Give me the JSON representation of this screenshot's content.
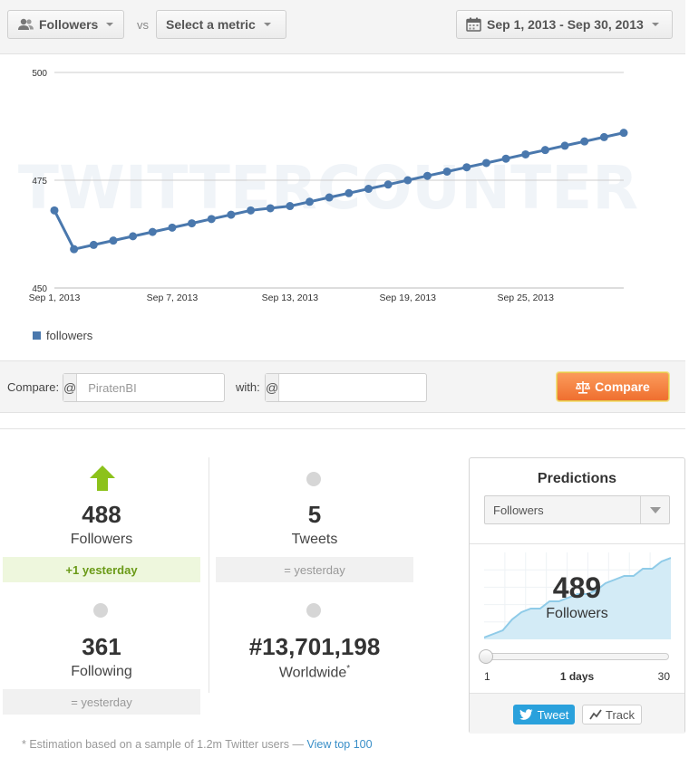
{
  "toolbar": {
    "metric_label": "Followers",
    "vs_label": "vs",
    "compare_metric_label": "Select a metric",
    "date_range_label": "Sep 1, 2013 - Sep 30, 2013"
  },
  "watermark": "TWITTERCOUNTER",
  "chart_data": {
    "type": "line",
    "x": [
      "Sep 1, 2013",
      "Sep 2, 2013",
      "Sep 3, 2013",
      "Sep 4, 2013",
      "Sep 5, 2013",
      "Sep 6, 2013",
      "Sep 7, 2013",
      "Sep 8, 2013",
      "Sep 9, 2013",
      "Sep 10, 2013",
      "Sep 11, 2013",
      "Sep 12, 2013",
      "Sep 13, 2013",
      "Sep 14, 2013",
      "Sep 15, 2013",
      "Sep 16, 2013",
      "Sep 17, 2013",
      "Sep 18, 2013",
      "Sep 19, 2013",
      "Sep 20, 2013",
      "Sep 21, 2013",
      "Sep 22, 2013",
      "Sep 23, 2013",
      "Sep 24, 2013",
      "Sep 25, 2013",
      "Sep 26, 2013",
      "Sep 27, 2013",
      "Sep 28, 2013",
      "Sep 29, 2013",
      "Sep 30, 2013"
    ],
    "series": [
      {
        "name": "followers",
        "color": "#4a78ad",
        "values": [
          468,
          459,
          460,
          461,
          462,
          463,
          464,
          465,
          466,
          467,
          468,
          468.5,
          469,
          470,
          471,
          472,
          473,
          474,
          475,
          476,
          477,
          478,
          479,
          480,
          481,
          482,
          483,
          484,
          485,
          486
        ]
      }
    ],
    "xticks": [
      "Sep 1, 2013",
      "Sep 7, 2013",
      "Sep 13, 2013",
      "Sep 19, 2013",
      "Sep 25, 2013"
    ],
    "yticks": [
      450,
      475,
      500
    ],
    "ylim": [
      450,
      500
    ],
    "grid": true,
    "legend": "bottom-left"
  },
  "compare": {
    "label": "Compare:",
    "at": "@",
    "first_value": "PiratenBI",
    "with_label": "with:",
    "second_placeholder": "",
    "button_label": "Compare"
  },
  "stats": {
    "followers": {
      "value": "488",
      "label": "Followers",
      "change": "+1 yesterday"
    },
    "tweets": {
      "value": "5",
      "label": "Tweets",
      "change": "= yesterday"
    },
    "following": {
      "value": "361",
      "label": "Following",
      "change": "= yesterday"
    },
    "worldwide": {
      "value": "#13,701,198",
      "label": "Worldwide",
      "marker": "*"
    }
  },
  "footnote": {
    "text": "* Estimation based on a sample of 1.2m Twitter users — ",
    "link": "View top 100"
  },
  "predictions": {
    "title": "Predictions",
    "metric": "Followers",
    "value": "489",
    "label": "Followers",
    "slider_min": "1",
    "slider_value": "1 days",
    "slider_max": "30",
    "slider_position": 0,
    "tweet_label": "Tweet",
    "track_label": "Track",
    "sparkline": [
      0,
      1,
      2,
      5,
      7,
      8,
      8,
      10,
      10,
      11,
      12,
      12,
      13,
      15,
      16,
      17,
      17,
      19,
      19,
      21,
      22
    ]
  },
  "colors": {
    "accent": "#4a78ad",
    "up": "#8cc21b",
    "compare_button": "#f07a3a",
    "tweet": "#2aa1dc",
    "area": "#bfe0f0"
  }
}
